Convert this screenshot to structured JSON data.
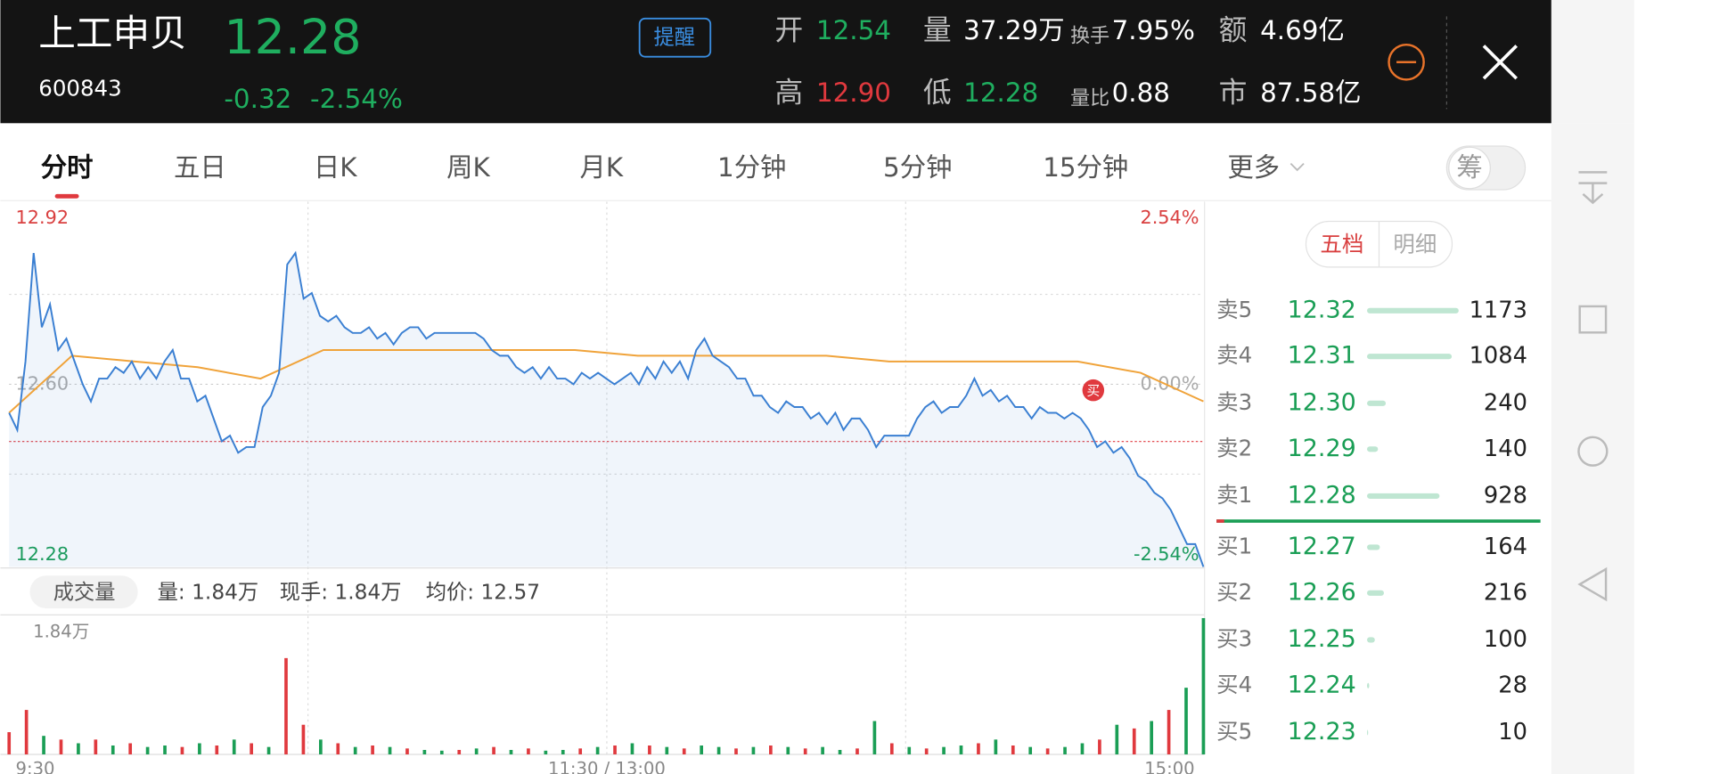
{
  "header": {
    "name": "上工申贝",
    "code": "600843",
    "price": "12.28",
    "change": "-0.32",
    "change_pct": "-2.54%",
    "alert": "提醒",
    "stats": [
      {
        "label": "开",
        "value": "12.54"
      },
      {
        "label": "量",
        "value": "37.29万"
      },
      {
        "label": "换手",
        "value": "7.95%"
      },
      {
        "label": "额",
        "value": "4.69亿"
      },
      {
        "label": "高",
        "value": "12.90"
      },
      {
        "label": "低",
        "value": "12.28"
      },
      {
        "label": "量比",
        "value": "0.88"
      },
      {
        "label": "市",
        "value": "87.58亿"
      }
    ]
  },
  "tabs": [
    "分时",
    "五日",
    "日K",
    "周K",
    "月K",
    "1分钟",
    "5分钟",
    "15分钟",
    "更多"
  ],
  "toggle": "筹",
  "intraday": {
    "type": "line",
    "ylim": [
      12.28,
      12.92
    ],
    "yticks": [
      12.28,
      {
        "value": 12.6,
        "label": "12.60"
      },
      12.92
    ],
    "pct_ticks": [
      {
        "value": 12.28,
        "label": "-2.54%"
      },
      {
        "value": 12.6,
        "label": "0.00%"
      },
      {
        "value": 12.92,
        "label": "2.54%"
      }
    ],
    "xtick_labels": [
      "9:30",
      "11:30 / 13:00",
      "15:00"
    ],
    "price": {
      "color": "#3a7fd2",
      "values": [
        12.55,
        12.52,
        12.64,
        12.83,
        12.7,
        12.74,
        12.66,
        12.68,
        12.64,
        12.6,
        12.57,
        12.61,
        12.61,
        12.63,
        12.62,
        12.64,
        12.61,
        12.63,
        12.61,
        12.64,
        12.66,
        12.61,
        12.61,
        12.57,
        12.58,
        12.54,
        12.5,
        12.51,
        12.48,
        12.49,
        12.49,
        12.56,
        12.58,
        12.62,
        12.81,
        12.83,
        12.75,
        12.76,
        12.72,
        12.71,
        12.72,
        12.7,
        12.69,
        12.69,
        12.7,
        12.68,
        12.69,
        12.67,
        12.69,
        12.7,
        12.7,
        12.68,
        12.69,
        12.69,
        12.69,
        12.69,
        12.69,
        12.69,
        12.68,
        12.66,
        12.65,
        12.65,
        12.63,
        12.62,
        12.63,
        12.61,
        12.63,
        12.61,
        12.61,
        12.6,
        12.62,
        12.61,
        12.62,
        12.61,
        12.6,
        12.61,
        12.62,
        12.6,
        12.63,
        12.61,
        12.64,
        12.62,
        12.64,
        12.61,
        12.66,
        12.68,
        12.65,
        12.64,
        12.63,
        12.61,
        12.61,
        12.58,
        12.58,
        12.56,
        12.55,
        12.57,
        12.56,
        12.56,
        12.54,
        12.55,
        12.53,
        12.55,
        12.52,
        12.54,
        12.54,
        12.52,
        12.49,
        12.51,
        12.51,
        12.51,
        12.51,
        12.54,
        12.56,
        12.57,
        12.55,
        12.56,
        12.56,
        12.58,
        12.61,
        12.58,
        12.59,
        12.57,
        12.58,
        12.56,
        12.56,
        12.54,
        12.56,
        12.55,
        12.55,
        12.54,
        12.55,
        12.54,
        12.52,
        12.49,
        12.5,
        12.48,
        12.49,
        12.47,
        12.44,
        12.43,
        12.41,
        12.4,
        12.38,
        12.35,
        12.32,
        12.32,
        12.28
      ]
    },
    "average": {
      "color": "#f0a33a",
      "values": [
        12.55,
        12.65,
        12.64,
        12.63,
        12.61,
        12.66,
        12.66,
        12.66,
        12.66,
        12.66,
        12.65,
        12.65,
        12.65,
        12.65,
        12.64,
        12.64,
        12.64,
        12.64,
        12.62,
        12.57
      ]
    },
    "marker": "买"
  },
  "volume_info": {
    "tag": "成交量",
    "items": [
      "量: 1.84万",
      "现手: 1.84万",
      "均价: 12.57"
    ]
  },
  "volume": {
    "type": "bar",
    "ylim": [
      0,
      1.84
    ],
    "yticks": [
      {
        "value": 1.84,
        "label": "1.84万"
      }
    ],
    "up_color": "#e0393e",
    "down_color": "#1a9e55",
    "values": [
      0.3,
      0.6,
      0.25,
      0.2,
      0.15,
      0.2,
      0.12,
      0.15,
      0.1,
      0.12,
      0.1,
      0.15,
      0.12,
      0.2,
      0.15,
      0.1,
      1.3,
      0.4,
      0.2,
      0.15,
      0.1,
      0.12,
      0.1,
      0.08,
      0.06,
      0.05,
      0.06,
      0.08,
      0.1,
      0.06,
      0.08,
      0.05,
      0.06,
      0.08,
      0.1,
      0.12,
      0.15,
      0.12,
      0.1,
      0.08,
      0.12,
      0.1,
      0.08,
      0.1,
      0.12,
      0.1,
      0.08,
      0.1,
      0.06,
      0.08,
      0.45,
      0.15,
      0.1,
      0.08,
      0.1,
      0.12,
      0.15,
      0.2,
      0.12,
      0.1,
      0.08,
      0.1,
      0.15,
      0.2,
      0.4,
      0.35,
      0.45,
      0.6,
      0.9,
      1.84
    ],
    "up": [
      true,
      true,
      false,
      true,
      false,
      true,
      false,
      true,
      false,
      false,
      true,
      false,
      true,
      false,
      true,
      false,
      true,
      true,
      false,
      true,
      false,
      true,
      false,
      true,
      false,
      false,
      true,
      false,
      true,
      false,
      true,
      false,
      false,
      true,
      false,
      true,
      false,
      true,
      false,
      true,
      false,
      false,
      true,
      false,
      true,
      false,
      true,
      false,
      false,
      true,
      false,
      true,
      false,
      true,
      false,
      false,
      true,
      false,
      true,
      false,
      true,
      false,
      false,
      true,
      false,
      true,
      false,
      true,
      false,
      false
    ]
  },
  "order_book": {
    "tabs": [
      "五档",
      "明细"
    ],
    "asks": [
      {
        "label": "卖5",
        "price": "12.32",
        "volume": 1173
      },
      {
        "label": "卖4",
        "price": "12.31",
        "volume": 1084
      },
      {
        "label": "卖3",
        "price": "12.30",
        "volume": 240
      },
      {
        "label": "卖2",
        "price": "12.29",
        "volume": 140
      },
      {
        "label": "卖1",
        "price": "12.28",
        "volume": 928
      }
    ],
    "bids": [
      {
        "label": "买1",
        "price": "12.27",
        "volume": 164
      },
      {
        "label": "买2",
        "price": "12.26",
        "volume": 216
      },
      {
        "label": "买3",
        "price": "12.25",
        "volume": 100
      },
      {
        "label": "买4",
        "price": "12.24",
        "volume": 28
      },
      {
        "label": "买5",
        "price": "12.23",
        "volume": 10
      }
    ]
  }
}
